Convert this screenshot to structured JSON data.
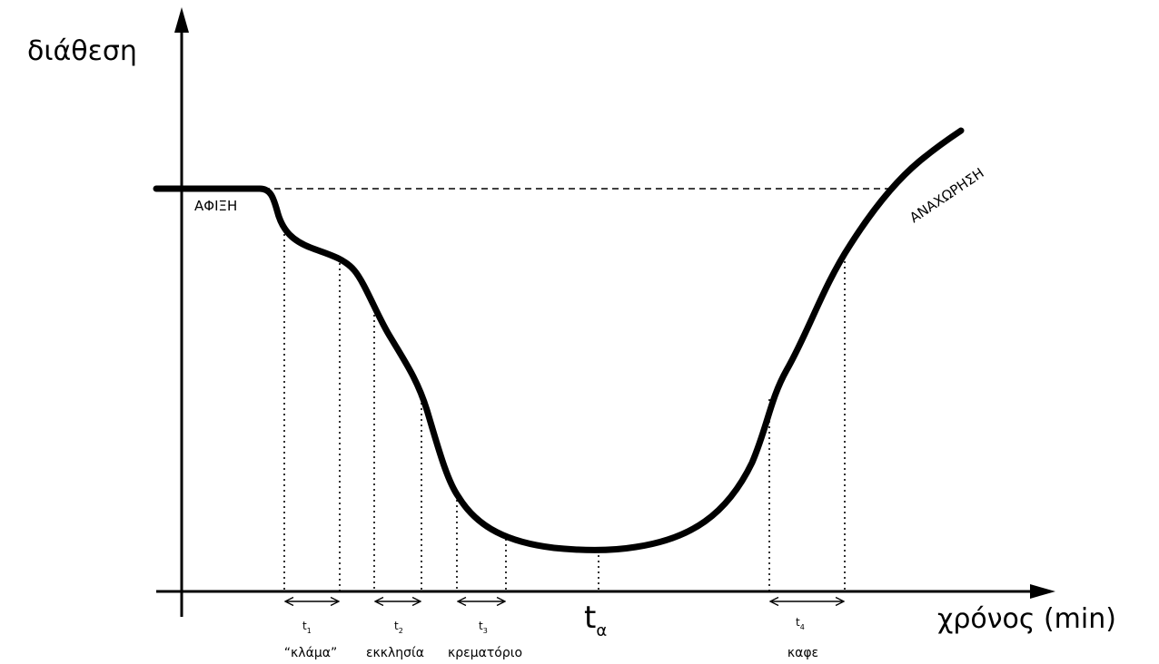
{
  "axes": {
    "y_label": "διάθεση",
    "x_label": "χρόνος (min)"
  },
  "states": {
    "arrival": "ΑΦΙΞΗ",
    "departure": "ΑΝΑΧΩΡΗΣΗ"
  },
  "intervals": [
    {
      "symbol": "t",
      "index": "1",
      "name": "“κλάμα”"
    },
    {
      "symbol": "t",
      "index": "2",
      "name": "εκκλησία"
    },
    {
      "symbol": "t",
      "index": "3",
      "name": "κρεματόριο"
    },
    {
      "symbol": "t",
      "index": "4",
      "name": "καφε"
    }
  ],
  "minimum": {
    "symbol": "t",
    "index": "α"
  }
}
